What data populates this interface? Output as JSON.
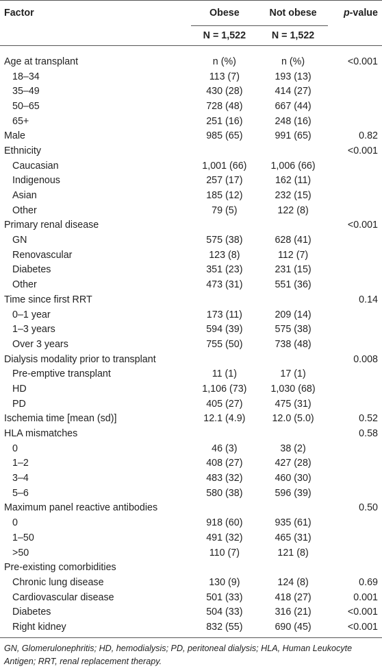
{
  "header": {
    "columns": [
      "Factor",
      "Obese",
      "Not obese",
      "p-value"
    ],
    "n_row": [
      "N = 1,522",
      "N = 1,522"
    ]
  },
  "groups": [
    {
      "factor": "Age at transplant",
      "obese": "n (%)",
      "not_obese": "n (%)",
      "p_value": "<0.001",
      "items": [
        {
          "factor": "18–34",
          "obese": "113 (7)",
          "not_obese": "193 (13)"
        },
        {
          "factor": "35–49",
          "obese": "430 (28)",
          "not_obese": "414 (27)"
        },
        {
          "factor": "50–65",
          "obese": "728 (48)",
          "not_obese": "667 (44)"
        },
        {
          "factor": "65+",
          "obese": "251 (16)",
          "not_obese": "248 (16)"
        }
      ]
    },
    {
      "factor": "Male",
      "obese": "985 (65)",
      "not_obese": "991 (65)",
      "p_value": "0.82",
      "items": []
    },
    {
      "factor": "Ethnicity",
      "p_value": "<0.001",
      "items": [
        {
          "factor": "Caucasian",
          "obese": "1,001 (66)",
          "not_obese": "1,006 (66)"
        },
        {
          "factor": "Indigenous",
          "obese": "257 (17)",
          "not_obese": "162 (11)"
        },
        {
          "factor": "Asian",
          "obese": "185 (12)",
          "not_obese": "232 (15)"
        },
        {
          "factor": "Other",
          "obese": "79 (5)",
          "not_obese": "122 (8)"
        }
      ]
    },
    {
      "factor": "Primary renal disease",
      "p_value": "<0.001",
      "items": [
        {
          "factor": "GN",
          "obese": "575 (38)",
          "not_obese": "628 (41)"
        },
        {
          "factor": "Renovascular",
          "obese": "123 (8)",
          "not_obese": "112 (7)"
        },
        {
          "factor": "Diabetes",
          "obese": "351 (23)",
          "not_obese": "231 (15)"
        },
        {
          "factor": "Other",
          "obese": "473 (31)",
          "not_obese": "551 (36)"
        }
      ]
    },
    {
      "factor": "Time since first RRT",
      "p_value": "0.14",
      "items": [
        {
          "factor": "0–1 year",
          "obese": "173 (11)",
          "not_obese": "209 (14)"
        },
        {
          "factor": "1–3 years",
          "obese": "594 (39)",
          "not_obese": "575 (38)"
        },
        {
          "factor": "Over 3 years",
          "obese": "755 (50)",
          "not_obese": "738 (48)"
        }
      ]
    },
    {
      "factor": "Dialysis modality prior to transplant",
      "p_value": "0.008",
      "items": [
        {
          "factor": "Pre-emptive transplant",
          "obese": "11 (1)",
          "not_obese": "17 (1)"
        },
        {
          "factor": "HD",
          "obese": "1,106 (73)",
          "not_obese": "1,030 (68)"
        },
        {
          "factor": "PD",
          "obese": "405 (27)",
          "not_obese": "475 (31)"
        }
      ]
    },
    {
      "factor": "Ischemia time [mean (sd)]",
      "obese": "12.1 (4.9)",
      "not_obese": "12.0 (5.0)",
      "p_value": "0.52",
      "items": []
    },
    {
      "factor": "HLA mismatches",
      "p_value": "0.58",
      "items": [
        {
          "factor": "0",
          "obese": "46 (3)",
          "not_obese": "38 (2)"
        },
        {
          "factor": "1–2",
          "obese": "408 (27)",
          "not_obese": "427 (28)"
        },
        {
          "factor": "3–4",
          "obese": "483 (32)",
          "not_obese": "460 (30)"
        },
        {
          "factor": "5–6",
          "obese": "580 (38)",
          "not_obese": "596 (39)"
        }
      ]
    },
    {
      "factor": "Maximum panel reactive antibodies",
      "p_value": "0.50",
      "items": [
        {
          "factor": "0",
          "obese": "918 (60)",
          "not_obese": "935 (61)"
        },
        {
          "factor": "1–50",
          "obese": "491 (32)",
          "not_obese": "465 (31)"
        },
        {
          "factor": ">50",
          "obese": "110 (7)",
          "not_obese": "121 (8)"
        }
      ]
    },
    {
      "factor": "Pre-existing comorbidities",
      "items": [
        {
          "factor": "Chronic lung disease",
          "obese": "130 (9)",
          "not_obese": "124 (8)",
          "p_value": "0.69"
        },
        {
          "factor": "Cardiovascular disease",
          "obese": "501 (33)",
          "not_obese": "418 (27)",
          "p_value": "0.001"
        },
        {
          "factor": "Diabetes",
          "obese": "504 (33)",
          "not_obese": "316 (21)",
          "p_value": "<0.001"
        },
        {
          "factor": "Right kidney",
          "obese": "832 (55)",
          "not_obese": "690 (45)",
          "p_value": "<0.001"
        }
      ]
    }
  ],
  "footnote": "GN, Glomerulonephritis; HD, hemodialysis; PD, peritoneal dialysis; HLA, Human Leukocyte Antigen; RRT, renal replacement therapy."
}
